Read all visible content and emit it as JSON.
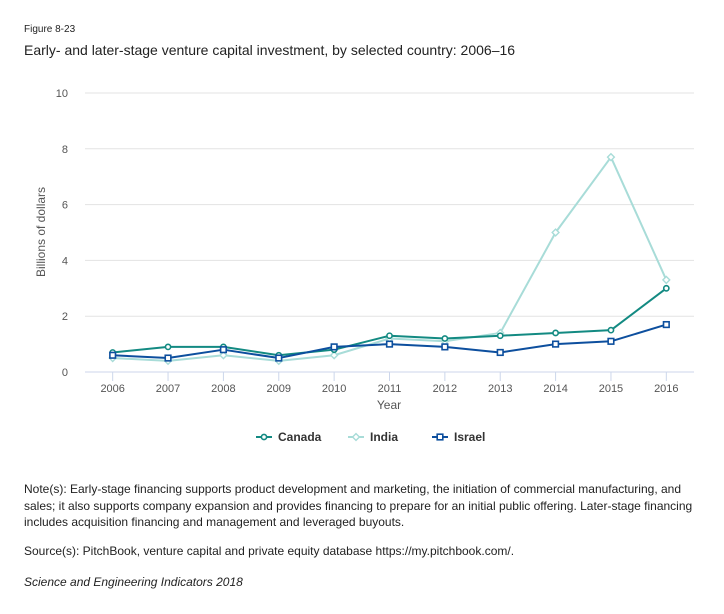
{
  "figure_label": "Figure 8-23",
  "title": "Early- and later-stage venture capital investment, by selected country: 2006–16",
  "notes": "Note(s): Early-stage financing supports product development and marketing, the initiation of commercial manufacturing, and sales; it also supports company expansion and provides financing to prepare for an initial public offering. Later-stage financing includes acquisition financing and management and leveraged buyouts.",
  "source": "Source(s): PitchBook, venture capital and private equity database https://my.pitchbook.com/.",
  "publication": "Science and Engineering Indicators 2018",
  "chart_data": {
    "type": "line",
    "title": "Early- and later-stage venture capital investment, by selected country: 2006–16",
    "xlabel": "Year",
    "ylabel": "Billions of dollars",
    "ylim": [
      0,
      10
    ],
    "yticks": [
      0,
      2,
      4,
      6,
      8,
      10
    ],
    "grid": true,
    "legend_position": "bottom",
    "categories": [
      "2006",
      "2007",
      "2008",
      "2009",
      "2010",
      "2011",
      "2012",
      "2013",
      "2014",
      "2015",
      "2016"
    ],
    "series": [
      {
        "name": "Canada",
        "color": "#138a82",
        "marker": "circle",
        "values": [
          0.7,
          0.9,
          0.9,
          0.6,
          0.8,
          1.3,
          1.2,
          1.3,
          1.4,
          1.5,
          3.0
        ]
      },
      {
        "name": "India",
        "color": "#a8dcd8",
        "marker": "diamond",
        "values": [
          0.5,
          0.4,
          0.6,
          0.4,
          0.6,
          1.2,
          1.1,
          1.4,
          5.0,
          7.7,
          3.3
        ]
      },
      {
        "name": "Israel",
        "color": "#0d4f9e",
        "marker": "square",
        "values": [
          0.6,
          0.5,
          0.8,
          0.5,
          0.9,
          1.0,
          0.9,
          0.7,
          1.0,
          1.1,
          1.7
        ]
      }
    ]
  }
}
